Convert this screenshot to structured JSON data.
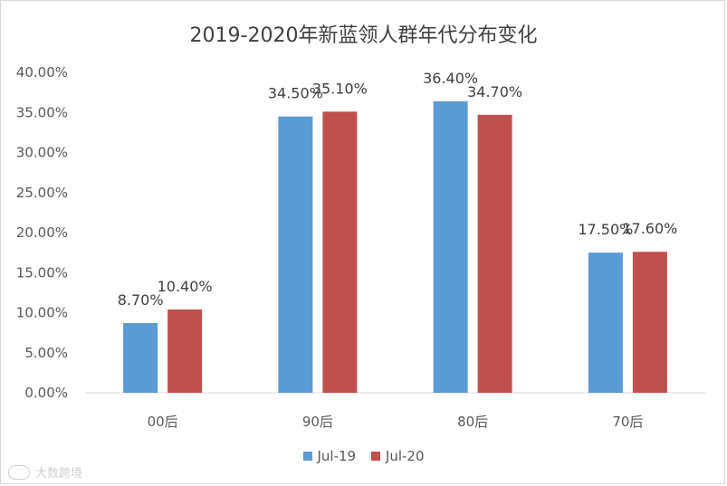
{
  "chart_data": {
    "type": "bar",
    "title": "2019-2020年新蓝领人群年代分布变化",
    "categories": [
      "00后",
      "90后",
      "80后",
      "70后"
    ],
    "series": [
      {
        "name": "Jul-19",
        "color": "#5b9bd5",
        "values": [
          8.7,
          34.5,
          36.4,
          17.5
        ]
      },
      {
        "name": "Jul-20",
        "color": "#c0504d",
        "values": [
          10.4,
          35.1,
          34.7,
          17.6
        ]
      }
    ],
    "data_labels": [
      [
        "8.70%",
        "34.50%",
        "36.40%",
        "17.50%"
      ],
      [
        "10.40%",
        "35.10%",
        "34.70%",
        "17.60%"
      ]
    ],
    "yticks": [
      "0.00%",
      "5.00%",
      "10.00%",
      "15.00%",
      "20.00%",
      "25.00%",
      "30.00%",
      "35.00%",
      "40.00%"
    ],
    "ylim": [
      0,
      40
    ],
    "grid": false,
    "legend": "bottom"
  },
  "watermark": {
    "text": "大数跨境",
    "logo_icon": "watermark-logo-icon"
  }
}
